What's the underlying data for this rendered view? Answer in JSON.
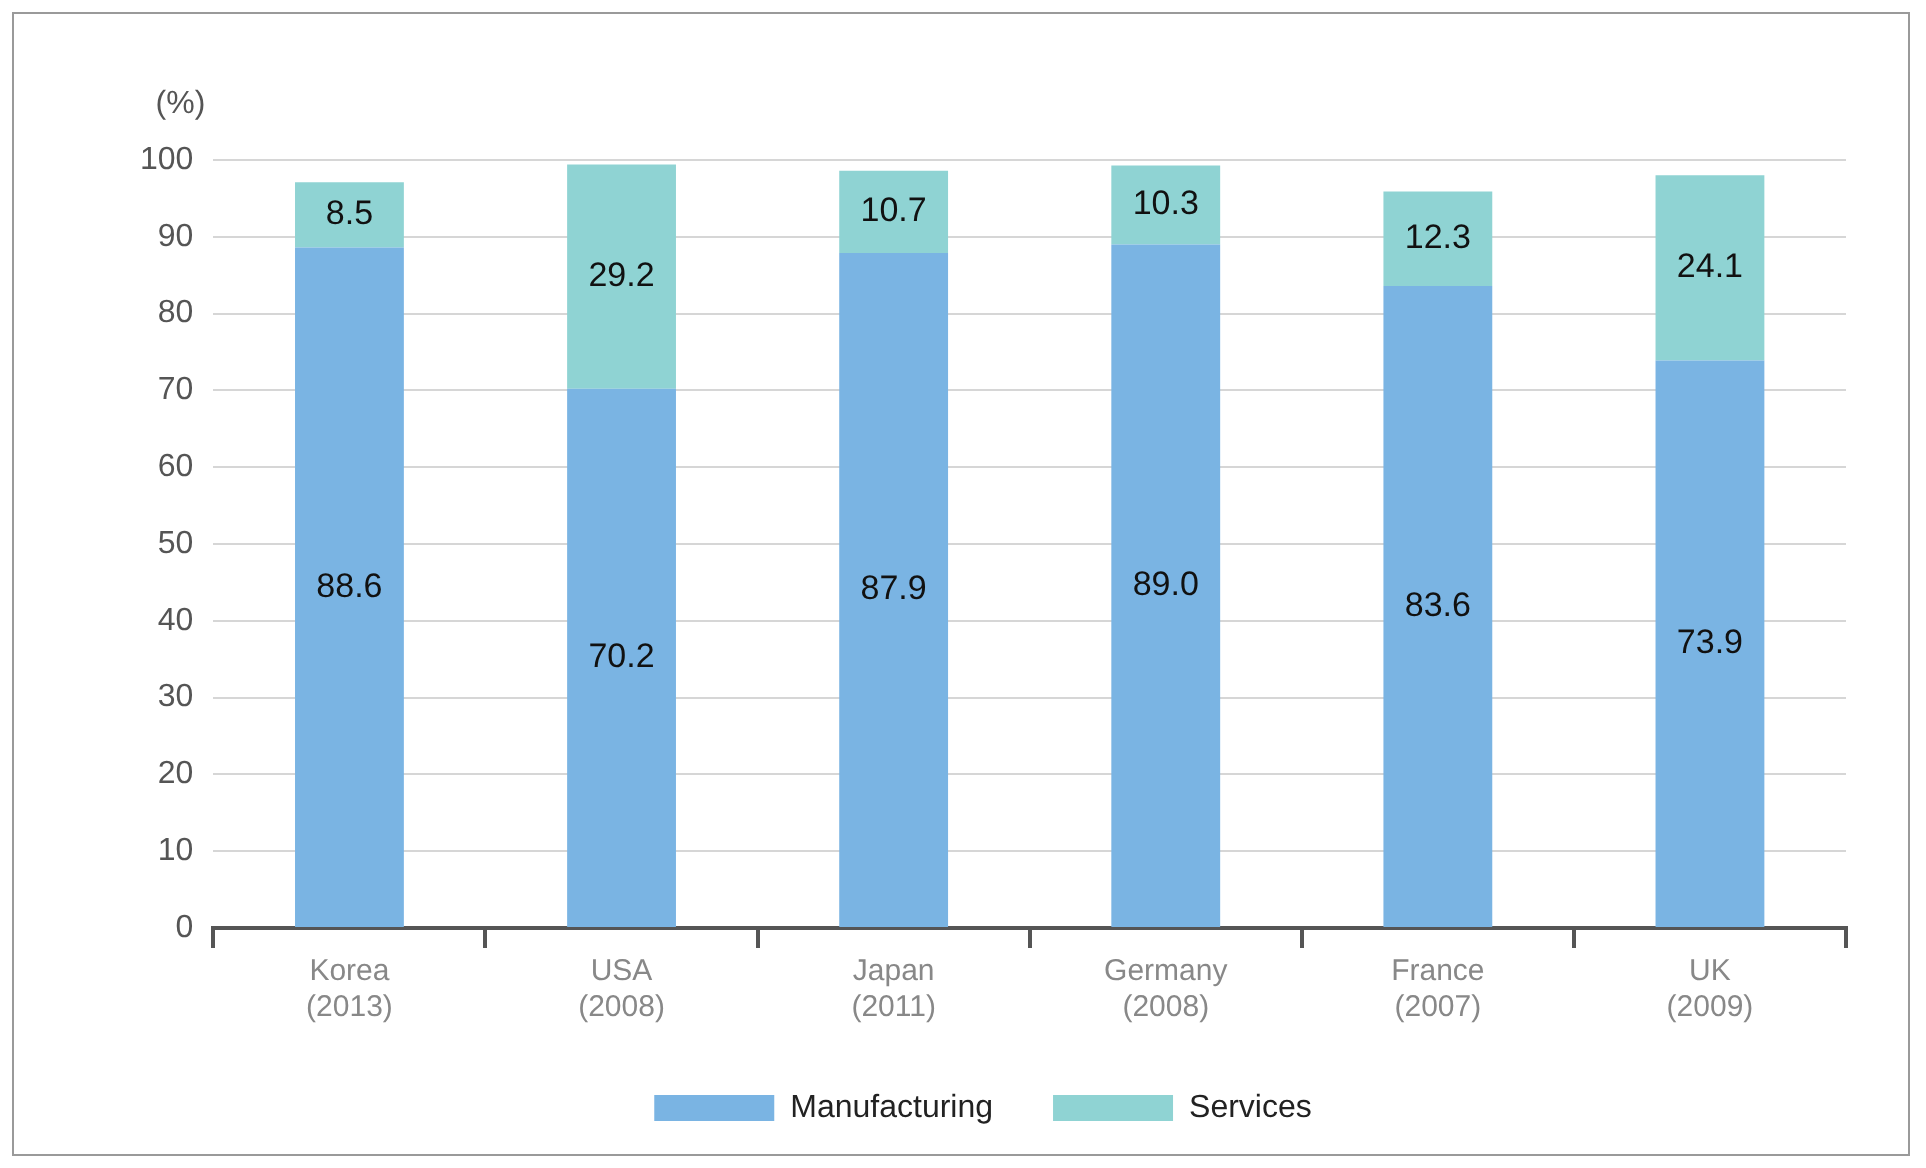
{
  "chart_data": {
    "type": "bar",
    "ylabel": "(%)",
    "stacked": true,
    "grid": "y",
    "legend": "bottom",
    "categories": [
      "Korea\n(2013)",
      "USA\n(2008)",
      "Japan\n(2011)",
      "Germany\n(2008)",
      "France\n(2007)",
      "UK\n(2009)"
    ],
    "series": [
      {
        "name": "Manufacturing",
        "color": "#7ab4e3",
        "values": [
          88.6,
          70.2,
          87.9,
          89.0,
          83.6,
          73.9
        ],
        "value_labels": [
          "88.6",
          "70.2",
          "87.9",
          "89.0",
          "83.6",
          "73.9"
        ]
      },
      {
        "name": "Services",
        "color": "#8fd3d3",
        "values": [
          8.5,
          29.2,
          10.7,
          10.3,
          12.3,
          24.1
        ],
        "value_labels": [
          "8.5",
          "29.2",
          "10.7",
          "10.3",
          "12.3",
          "24.1"
        ]
      }
    ],
    "ylim": [
      0,
      100
    ],
    "yticks": [
      0,
      10,
      20,
      30,
      40,
      50,
      60,
      70,
      80,
      90,
      100
    ]
  }
}
